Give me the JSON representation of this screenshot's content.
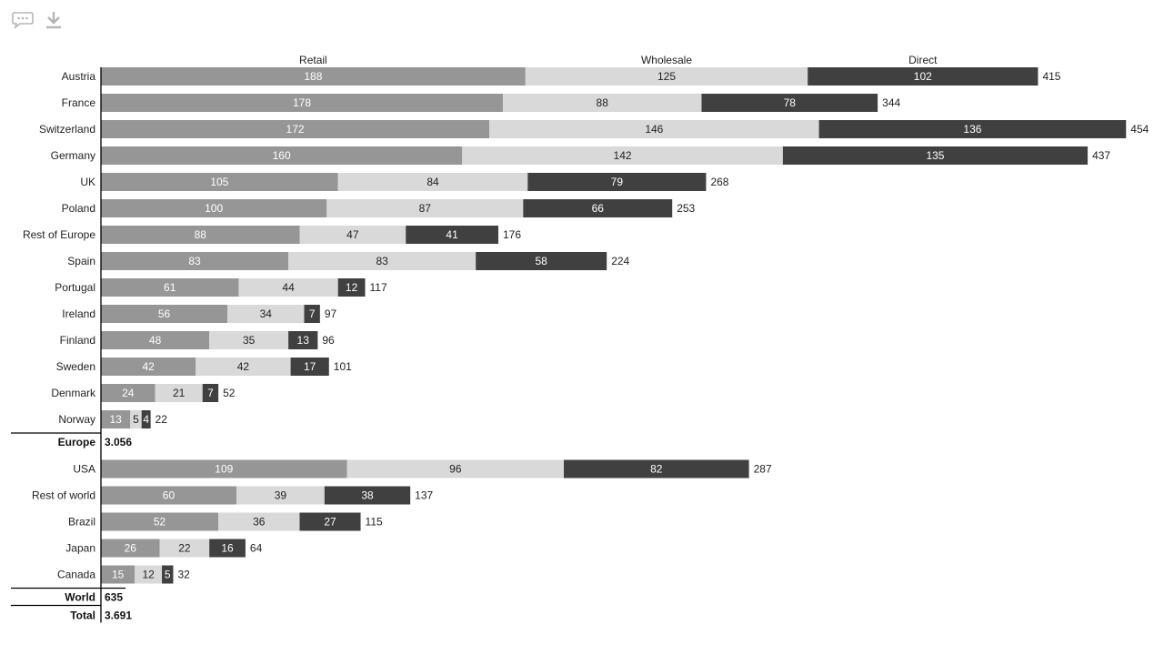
{
  "toolbar": {
    "comment_icon": "speech-bubble-icon",
    "download_icon": "download-icon"
  },
  "colors": {
    "retail": "#969696",
    "wholesale": "#d9d9d9",
    "direct": "#404040",
    "axis": "#000000"
  },
  "chart_data": {
    "type": "bar",
    "orientation": "horizontal",
    "stacked": true,
    "series": [
      {
        "name": "Retail"
      },
      {
        "name": "Wholesale"
      },
      {
        "name": "Direct"
      }
    ],
    "groups": [
      {
        "name": "Europe",
        "total_label": "3.056",
        "rows": [
          {
            "category": "Austria",
            "values": [
              188,
              125,
              102
            ],
            "total": 415
          },
          {
            "category": "France",
            "values": [
              178,
              88,
              78
            ],
            "total": 344
          },
          {
            "category": "Switzerland",
            "values": [
              172,
              146,
              136
            ],
            "total": 454
          },
          {
            "category": "Germany",
            "values": [
              160,
              142,
              135
            ],
            "total": 437
          },
          {
            "category": "UK",
            "values": [
              105,
              84,
              79
            ],
            "total": 268
          },
          {
            "category": "Poland",
            "values": [
              100,
              87,
              66
            ],
            "total": 253
          },
          {
            "category": "Rest of Europe",
            "values": [
              88,
              47,
              41
            ],
            "total": 176
          },
          {
            "category": "Spain",
            "values": [
              83,
              83,
              58
            ],
            "total": 224
          },
          {
            "category": "Portugal",
            "values": [
              61,
              44,
              12
            ],
            "total": 117
          },
          {
            "category": "Ireland",
            "values": [
              56,
              34,
              7
            ],
            "total": 97
          },
          {
            "category": "Finland",
            "values": [
              48,
              35,
              13
            ],
            "total": 96
          },
          {
            "category": "Sweden",
            "values": [
              42,
              42,
              17
            ],
            "total": 101
          },
          {
            "category": "Denmark",
            "values": [
              24,
              21,
              7
            ],
            "total": 52
          },
          {
            "category": "Norway",
            "values": [
              13,
              5,
              4
            ],
            "total": 22
          }
        ]
      },
      {
        "name": "World",
        "total_label": "635",
        "rows": [
          {
            "category": "USA",
            "values": [
              109,
              96,
              82
            ],
            "total": 287
          },
          {
            "category": "Rest of world",
            "values": [
              60,
              39,
              38
            ],
            "total": 137
          },
          {
            "category": "Brazil",
            "values": [
              52,
              36,
              27
            ],
            "total": 115
          },
          {
            "category": "Japan",
            "values": [
              26,
              22,
              16
            ],
            "total": 64
          },
          {
            "category": "Canada",
            "values": [
              15,
              12,
              5
            ],
            "total": 32
          }
        ]
      }
    ],
    "grand_total": {
      "label": "Total",
      "value_label": "3.691"
    },
    "legend": "top, labels above first row segments",
    "grid": false
  }
}
